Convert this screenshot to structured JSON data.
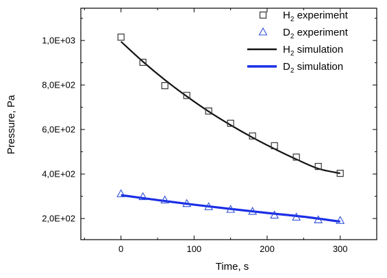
{
  "chart_data": {
    "type": "scatter",
    "xlabel": "Time, s",
    "ylabel": "Pressure, Pa",
    "xlim": [
      -55,
      350
    ],
    "ylim": [
      105,
      1145
    ],
    "x_ticks": [
      0,
      100,
      200,
      300
    ],
    "x_tick_labels": [
      "0",
      "100",
      "200",
      "300"
    ],
    "y_ticks": [
      200,
      400,
      600,
      800,
      1000
    ],
    "y_tick_labels": [
      "2,0E+02",
      "4,0E+02",
      "6,0E+02",
      "8,0E+02",
      "1,0E+03"
    ],
    "grid": false,
    "legend_position": "top-right",
    "series": [
      {
        "name": "H2 experiment",
        "legend": {
          "prefix": "H",
          "sub": "2",
          "suffix": " experiment"
        },
        "kind": "markers",
        "marker": "square",
        "color": "#333333",
        "x": [
          0,
          30,
          60,
          90,
          120,
          150,
          180,
          210,
          240,
          270,
          300
        ],
        "y": [
          1015,
          902,
          797,
          753,
          683,
          628,
          571,
          527,
          476,
          434,
          403
        ]
      },
      {
        "name": "D2 experiment",
        "legend": {
          "prefix": "D",
          "sub": "2",
          "suffix": " experiment"
        },
        "kind": "markers",
        "marker": "triangle",
        "color": "#2f4fd6",
        "x": [
          0,
          30,
          60,
          90,
          120,
          150,
          180,
          210,
          240,
          270,
          300
        ],
        "y": [
          310,
          297,
          282,
          266,
          252,
          240,
          231,
          214,
          205,
          193,
          190
        ]
      },
      {
        "name": "H2 simulation",
        "legend": {
          "prefix": "H",
          "sub": "2",
          "suffix": " simulation"
        },
        "kind": "line",
        "color": "#111111",
        "x": [
          0,
          30,
          60,
          90,
          120,
          150,
          180,
          210,
          240,
          270,
          300
        ],
        "y": [
          995,
          905,
          823,
          749,
          681,
          620,
          564,
          513,
          466,
          424,
          403
        ]
      },
      {
        "name": "D2 simulation",
        "legend": {
          "prefix": "D",
          "sub": "2",
          "suffix": " simulation"
        },
        "kind": "line",
        "color": "#1a2ee6",
        "x": [
          0,
          50,
          100,
          150,
          200,
          250,
          300
        ],
        "y": [
          305,
          283,
          262,
          243,
          225,
          208,
          186
        ]
      }
    ]
  }
}
